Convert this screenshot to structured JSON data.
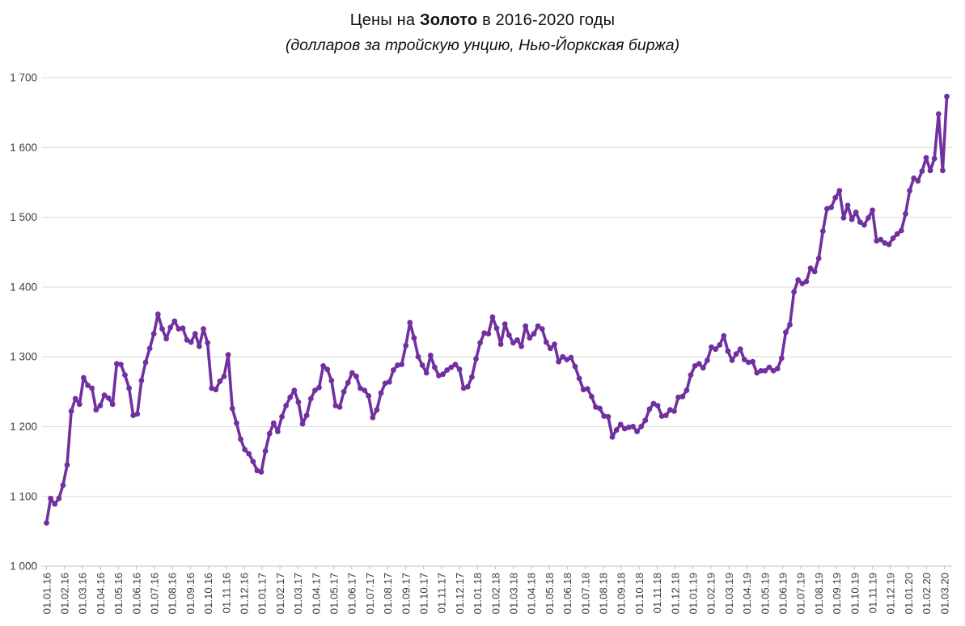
{
  "header": {
    "title_prefix": "Цены на ",
    "title_bold": "Золото",
    "title_suffix": " в 2016-2020 годы",
    "subtitle": "(долларов за тройскую унцию, Нью-Йоркская биржа)"
  },
  "chart_data": {
    "type": "line",
    "title": "Цены на Золото в 2016-2020 годы",
    "subtitle": "(долларов за тройскую унцию, Нью-Йоркская биржа)",
    "legend": "none",
    "grid": "horizontal",
    "line_color": "#7030A0",
    "grid_color": "#d9d9d9",
    "axis_color": "#bfbfbf",
    "tick_label_color": "#3d3d3d",
    "marker": "circle",
    "ylim": [
      1000,
      1700
    ],
    "y_tick_step": 100,
    "y_tick_labels": [
      "1 000",
      "1 100",
      "1 200",
      "1 300",
      "1 400",
      "1 500",
      "1 600",
      "1 700"
    ],
    "x_interval": "weekly",
    "x_start_date": "01.01.2016",
    "x_tick_labels": [
      "01.01.16",
      "01.02.16",
      "01.03.16",
      "01.04.16",
      "01.05.16",
      "01.06.16",
      "01.07.16",
      "01.08.16",
      "01.09.16",
      "01.10.16",
      "01.11.16",
      "01.12.16",
      "01.01.17",
      "01.02.17",
      "01.03.17",
      "01.04.17",
      "01.05.17",
      "01.06.17",
      "01.07.17",
      "01.08.17",
      "01.09.17",
      "01.10.17",
      "01.11.17",
      "01.12.17",
      "01.01.18",
      "01.02.18",
      "01.03.18",
      "01.04.18",
      "01.05.18",
      "01.06.18",
      "01.07.18",
      "01.08.18",
      "01.09.18",
      "01.10.18",
      "01.11.18",
      "01.12.18",
      "01.01.19",
      "01.02.19",
      "01.03.19",
      "01.04.19",
      "01.05.19",
      "01.06.19",
      "01.07.19",
      "01.08.19",
      "01.09.19",
      "01.10.19",
      "01.11.19",
      "01.12.19",
      "01.01.20",
      "01.02.20",
      "01.03.20"
    ],
    "values": [
      1062,
      1097,
      1089,
      1097,
      1116,
      1145,
      1222,
      1240,
      1232,
      1270,
      1259,
      1255,
      1224,
      1230,
      1245,
      1241,
      1232,
      1290,
      1289,
      1274,
      1255,
      1216,
      1218,
      1266,
      1292,
      1312,
      1333,
      1361,
      1340,
      1326,
      1342,
      1351,
      1340,
      1341,
      1324,
      1321,
      1333,
      1315,
      1340,
      1320,
      1255,
      1253,
      1265,
      1272,
      1303,
      1226,
      1205,
      1182,
      1167,
      1161,
      1150,
      1137,
      1135,
      1165,
      1190,
      1205,
      1193,
      1214,
      1230,
      1242,
      1252,
      1235,
      1204,
      1216,
      1240,
      1252,
      1256,
      1287,
      1282,
      1266,
      1230,
      1228,
      1250,
      1263,
      1277,
      1272,
      1255,
      1252,
      1244,
      1213,
      1224,
      1248,
      1262,
      1264,
      1281,
      1288,
      1289,
      1316,
      1349,
      1327,
      1300,
      1288,
      1277,
      1302,
      1285,
      1273,
      1275,
      1281,
      1285,
      1289,
      1282,
      1255,
      1257,
      1271,
      1297,
      1320,
      1334,
      1333,
      1357,
      1341,
      1318,
      1347,
      1331,
      1320,
      1324,
      1315,
      1344,
      1327,
      1333,
      1344,
      1340,
      1321,
      1312,
      1318,
      1293,
      1300,
      1296,
      1299,
      1286,
      1269,
      1253,
      1254,
      1243,
      1228,
      1226,
      1215,
      1214,
      1185,
      1195,
      1203,
      1197,
      1199,
      1200,
      1193,
      1200,
      1209,
      1225,
      1233,
      1230,
      1215,
      1216,
      1224,
      1222,
      1242,
      1243,
      1252,
      1274,
      1287,
      1290,
      1284,
      1295,
      1314,
      1311,
      1317,
      1330,
      1308,
      1295,
      1304,
      1311,
      1296,
      1292,
      1293,
      1277,
      1280,
      1280,
      1285,
      1280,
      1283,
      1298,
      1335,
      1346,
      1393,
      1410,
      1405,
      1408,
      1427,
      1422,
      1441,
      1480,
      1512,
      1514,
      1528,
      1538,
      1499,
      1517,
      1497,
      1507,
      1493,
      1489,
      1499,
      1510,
      1466,
      1468,
      1463,
      1461,
      1470,
      1476,
      1481,
      1505,
      1538,
      1556,
      1552,
      1566,
      1585,
      1567,
      1584,
      1648,
      1567,
      1673
    ]
  }
}
